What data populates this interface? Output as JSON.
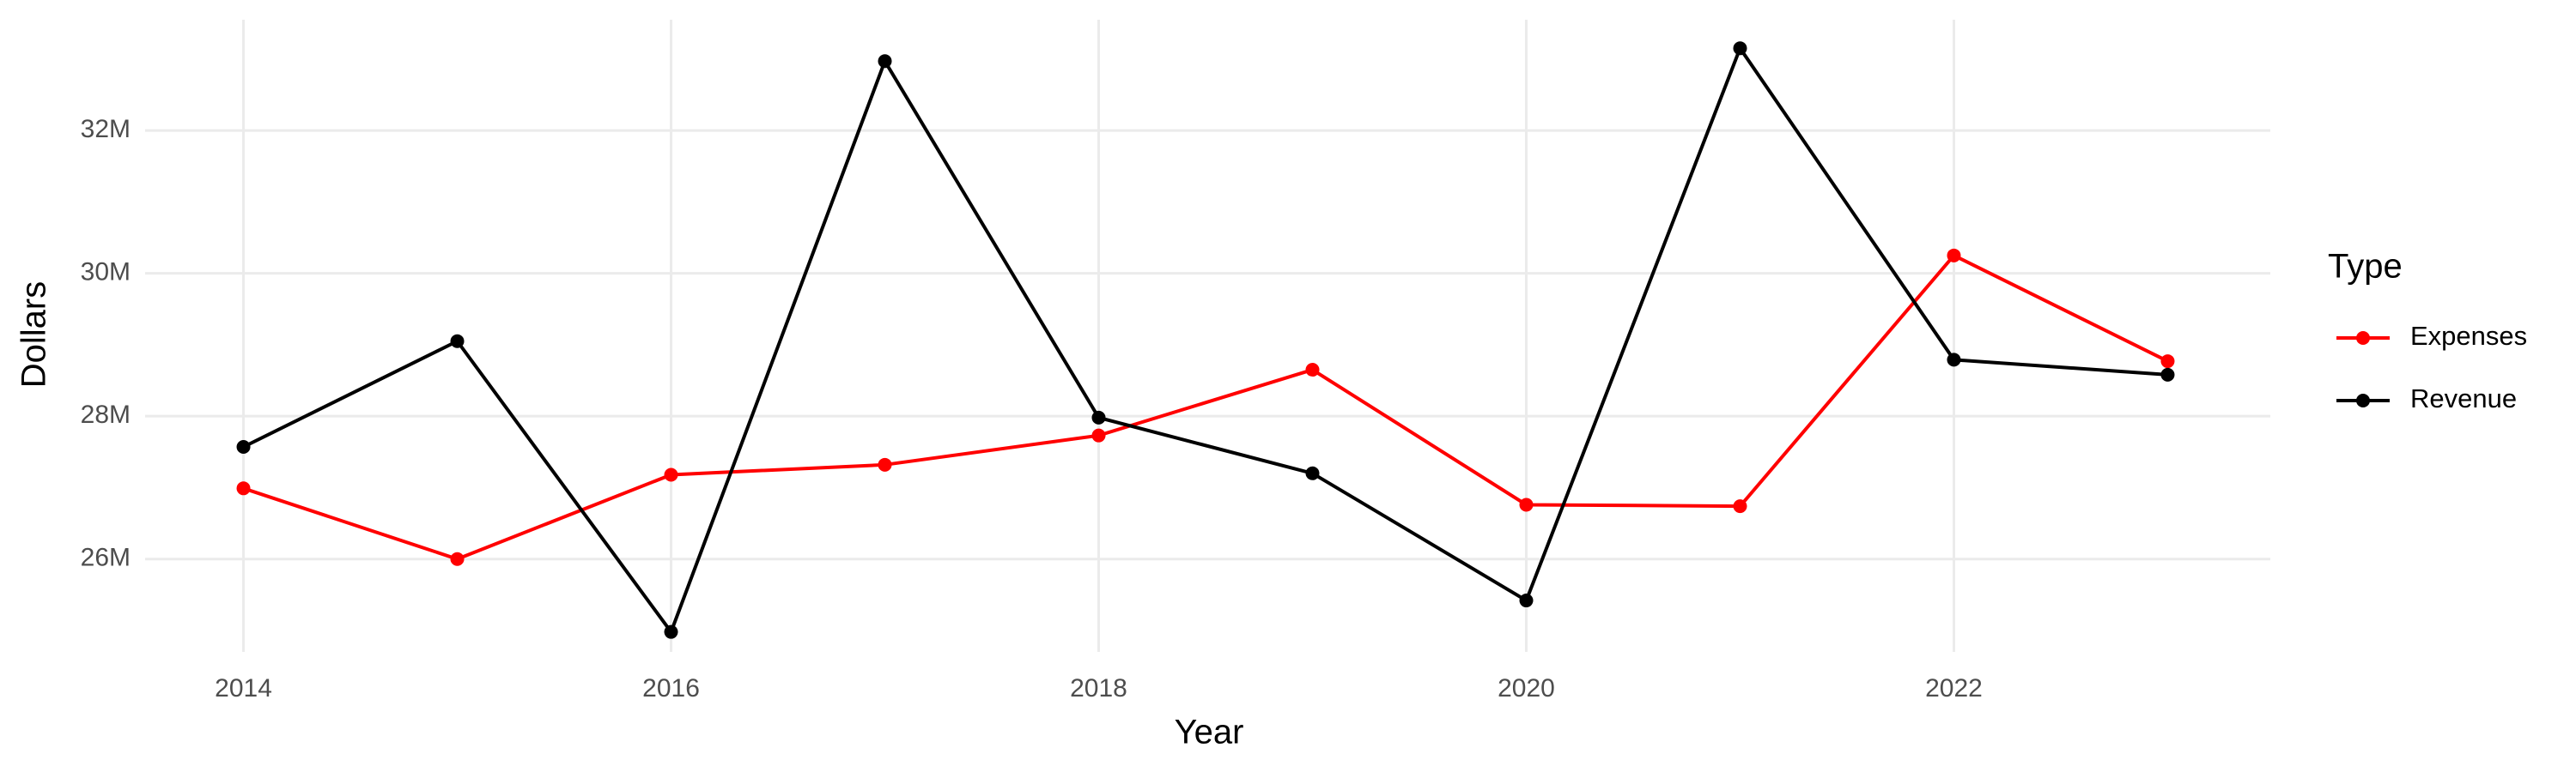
{
  "chart_data": {
    "type": "line",
    "x_label": "Year",
    "y_label": "Dollars",
    "legend_title": "Type",
    "legend_position": "right",
    "grid": true,
    "x": [
      2014,
      2015,
      2016,
      2017,
      2018,
      2019,
      2020,
      2021,
      2022,
      2023
    ],
    "series": [
      {
        "name": "Expenses",
        "color": "#ff0000",
        "values": [
          26990000,
          26000000,
          27180000,
          27320000,
          27730000,
          28650000,
          26760000,
          26740000,
          30250000,
          28770000
        ]
      },
      {
        "name": "Revenue",
        "color": "#000000",
        "values": [
          27570000,
          29050000,
          24980000,
          32970000,
          27980000,
          27200000,
          25420000,
          33150000,
          28790000,
          28580000
        ]
      }
    ],
    "xlim": [
      2013.54,
      2023.48
    ],
    "xticks": [
      2014,
      2016,
      2018,
      2020,
      2022
    ],
    "ylim": [
      24700000,
      33550000
    ],
    "yticks": [
      {
        "value": 26000000,
        "label": "26M"
      },
      {
        "value": 28000000,
        "label": "28M"
      },
      {
        "value": 30000000,
        "label": "30M"
      },
      {
        "value": 32000000,
        "label": "32M"
      }
    ]
  }
}
